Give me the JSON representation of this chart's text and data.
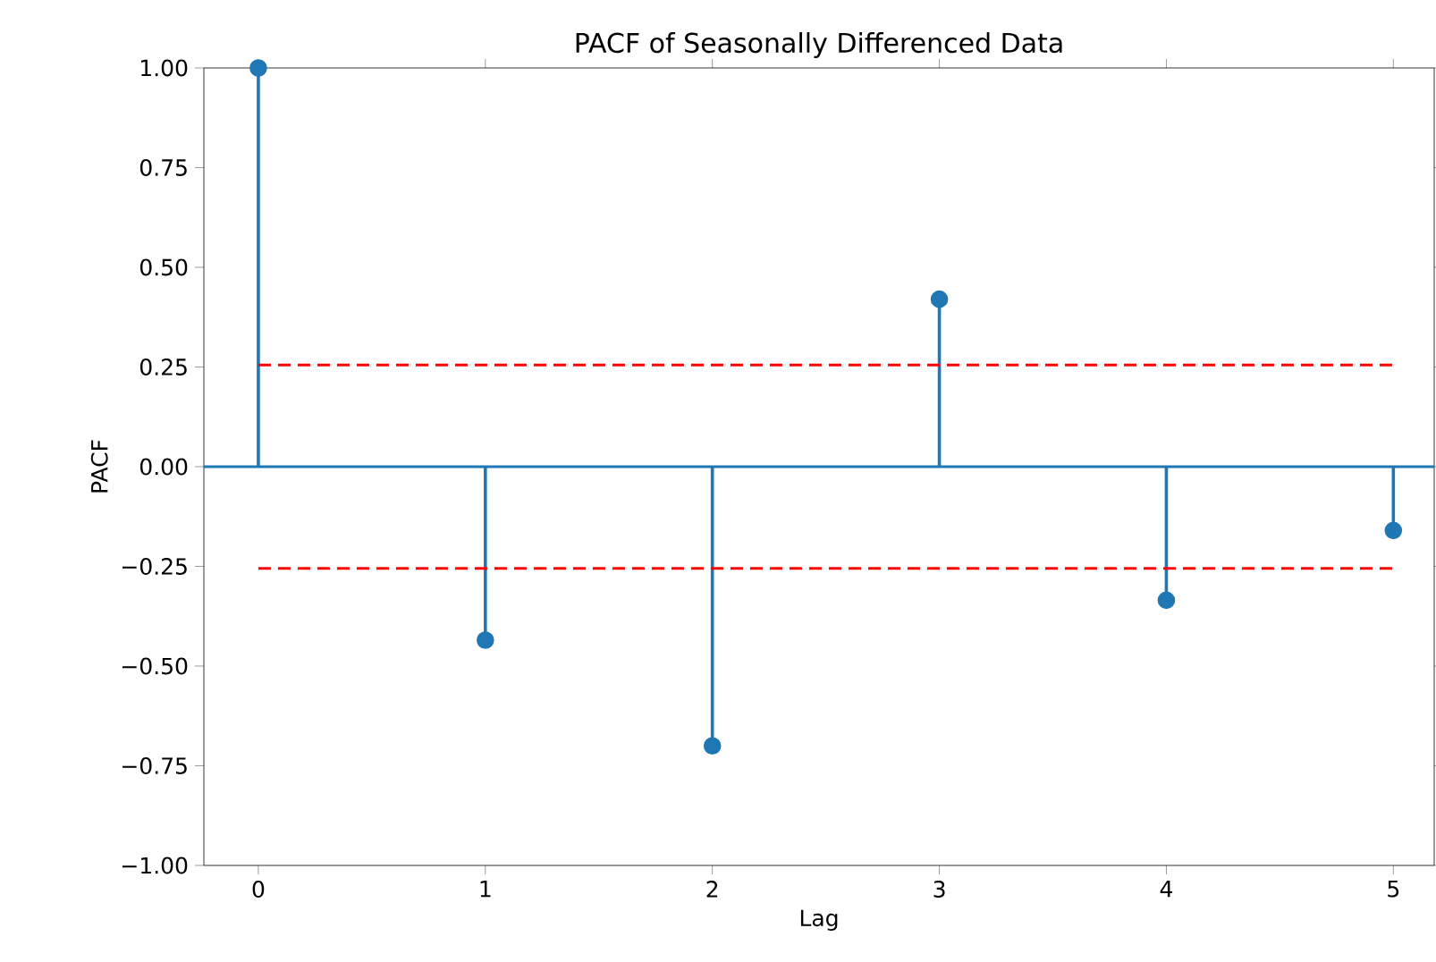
{
  "chart_data": {
    "type": "lollipop",
    "title": "PACF of Seasonally Differenced Data",
    "xlabel": "Lag",
    "ylabel": "PACF",
    "x": [
      0,
      1,
      2,
      3,
      4,
      5
    ],
    "series": [
      {
        "color": "#1f77b4",
        "values": [
          1.0,
          -0.435,
          -0.7,
          0.42,
          -0.335,
          -0.16
        ]
      }
    ],
    "marker": "circle",
    "xlim": [
      -0.24,
      5.18
    ],
    "xticks": [
      0,
      1,
      2,
      3,
      4,
      5
    ],
    "ylim": [
      -1,
      1
    ],
    "yticks": [
      {
        "value": -1,
        "label": "−1.00"
      },
      {
        "value": -0.75,
        "label": "−0.75"
      },
      {
        "value": -0.5,
        "label": "−0.50"
      },
      {
        "value": -0.25,
        "label": "−0.25"
      },
      {
        "value": 0,
        "label": "0.00"
      },
      {
        "value": 0.25,
        "label": "0.25"
      },
      {
        "value": 0.5,
        "label": "0.50"
      },
      {
        "value": 0.75,
        "label": "0.75"
      },
      {
        "value": 1,
        "label": "1.00"
      }
    ],
    "ref_lines": [
      {
        "axis": "y",
        "value": 0,
        "color": "#1f77b4",
        "line_style": "solid"
      },
      {
        "axis": "y",
        "value": 0.255,
        "color": "#ff0000",
        "line_style": "dashed"
      },
      {
        "axis": "y",
        "value": -0.255,
        "color": "#ff0000",
        "line_style": "dashed"
      }
    ]
  }
}
